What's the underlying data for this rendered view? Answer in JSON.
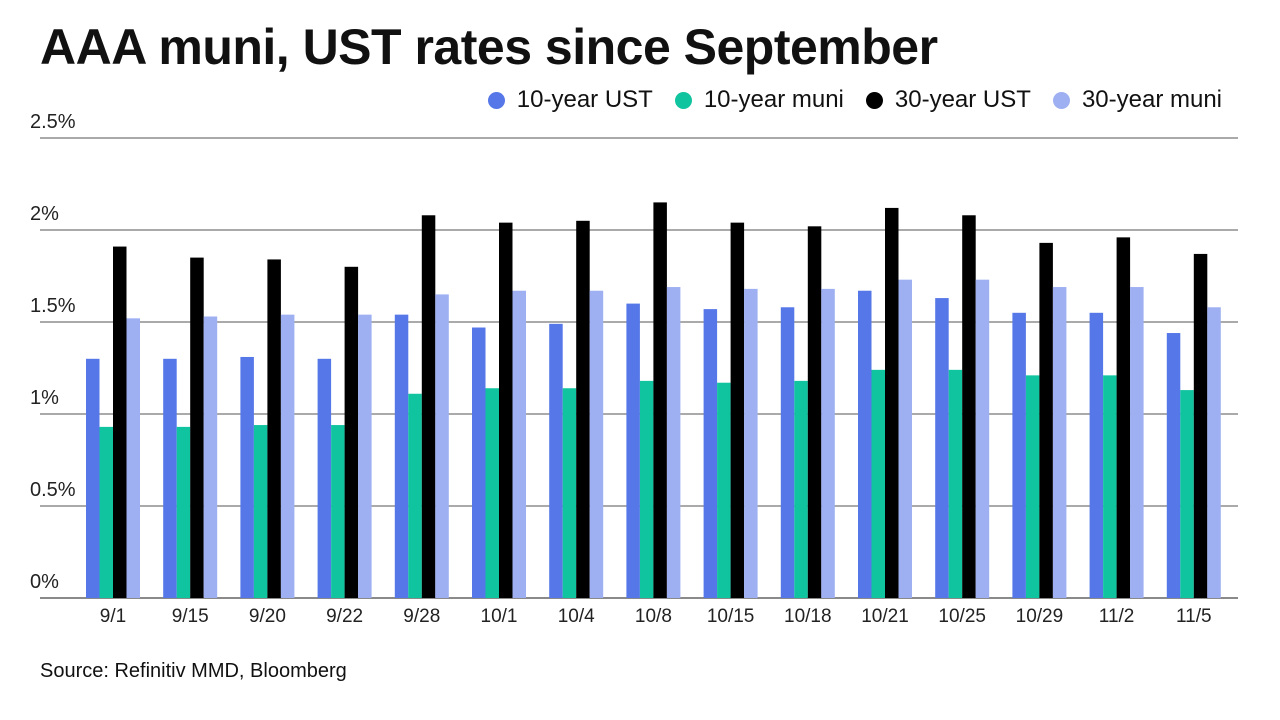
{
  "chart_data": {
    "type": "bar",
    "title": "AAA muni, UST rates since September",
    "xlabel": "",
    "ylabel": "",
    "ylim": [
      0,
      2.5
    ],
    "yticks": [
      {
        "value": 0,
        "label": "0%"
      },
      {
        "value": 0.5,
        "label": "0.5%"
      },
      {
        "value": 1,
        "label": "1%"
      },
      {
        "value": 1.5,
        "label": "1.5%"
      },
      {
        "value": 2,
        "label": "2%"
      },
      {
        "value": 2.5,
        "label": "2.5%"
      }
    ],
    "grid": true,
    "legend_position": "top-right",
    "categories": [
      "9/1",
      "9/15",
      "9/20",
      "9/22",
      "9/28",
      "10/1",
      "10/4",
      "10/8",
      "10/15",
      "10/18",
      "10/21",
      "10/25",
      "10/29",
      "11/2",
      "11/5"
    ],
    "series": [
      {
        "name": "10-year UST",
        "color": "#5577e8",
        "values": [
          1.3,
          1.3,
          1.31,
          1.3,
          1.54,
          1.47,
          1.49,
          1.6,
          1.57,
          1.58,
          1.67,
          1.63,
          1.55,
          1.55,
          1.44
        ]
      },
      {
        "name": "10-year muni",
        "color": "#11c4a0",
        "values": [
          0.93,
          0.93,
          0.94,
          0.94,
          1.11,
          1.14,
          1.14,
          1.18,
          1.17,
          1.18,
          1.24,
          1.24,
          1.21,
          1.21,
          1.13
        ]
      },
      {
        "name": "30-year UST",
        "color": "#000000",
        "values": [
          1.91,
          1.85,
          1.84,
          1.8,
          2.08,
          2.04,
          2.05,
          2.15,
          2.04,
          2.02,
          2.12,
          2.08,
          1.93,
          1.96,
          1.87
        ]
      },
      {
        "name": "30-year muni",
        "color": "#9eb0f2",
        "values": [
          1.52,
          1.53,
          1.54,
          1.54,
          1.65,
          1.67,
          1.67,
          1.69,
          1.68,
          1.68,
          1.73,
          1.73,
          1.69,
          1.69,
          1.58
        ]
      }
    ]
  },
  "source": "Source: Refinitiv MMD, Bloomberg"
}
